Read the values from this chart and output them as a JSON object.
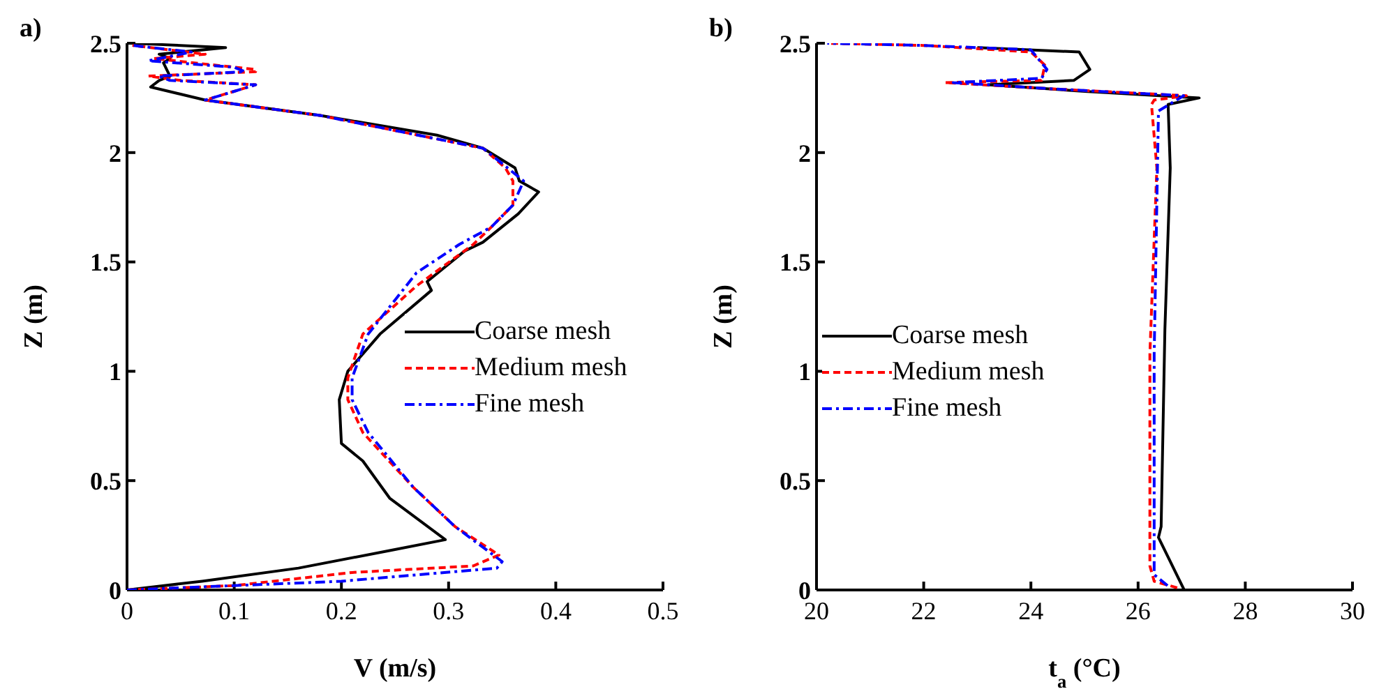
{
  "chart_data": [
    {
      "type": "line",
      "title": "a)",
      "xlabel": "V (m/s)",
      "ylabel": "Z (m)",
      "xlim": [
        0,
        0.5
      ],
      "xticks": [
        0,
        0.1,
        0.2,
        0.3,
        0.4,
        0.5
      ],
      "ylim": [
        0,
        2.5
      ],
      "yticks": [
        0,
        0.5,
        1,
        1.5,
        2,
        2.5
      ],
      "grid": false,
      "legend": "right",
      "marker": "none",
      "series": [
        {
          "name": "Coarse mesh",
          "color": "#000000",
          "line_style": "solid",
          "x": [
            0,
            0.07,
            0.16,
            0.245,
            0.297,
            0.245,
            0.22,
            0.2,
            0.198,
            0.206,
            0.236,
            0.284,
            0.28,
            0.315,
            0.332,
            0.365,
            0.384,
            0.366,
            0.362,
            0.332,
            0.289,
            0.18,
            0.073,
            0.022,
            0.03,
            0.04,
            0.034,
            0.04,
            0.03,
            0.092,
            0.005
          ],
          "values": [
            0,
            0.04,
            0.1,
            0.18,
            0.23,
            0.42,
            0.59,
            0.67,
            0.87,
            1.0,
            1.17,
            1.37,
            1.41,
            1.55,
            1.59,
            1.72,
            1.82,
            1.87,
            1.93,
            2.02,
            2.08,
            2.17,
            2.24,
            2.3,
            2.33,
            2.35,
            2.41,
            2.43,
            2.45,
            2.48,
            2.5
          ]
        },
        {
          "name": "Medium mesh",
          "color": "#ff0000",
          "line_style": "dashed",
          "x": [
            0,
            0.1,
            0.21,
            0.323,
            0.347,
            0.306,
            0.267,
            0.22,
            0.206,
            0.206,
            0.22,
            0.27,
            0.323,
            0.34,
            0.36,
            0.36,
            0.353,
            0.332,
            0.18,
            0.073,
            0.093,
            0.12,
            0.05,
            0.02,
            0.12,
            0.12,
            0.025,
            0.073,
            0.005
          ],
          "values": [
            0,
            0.02,
            0.08,
            0.11,
            0.16,
            0.29,
            0.47,
            0.72,
            0.87,
            0.97,
            1.17,
            1.39,
            1.58,
            1.66,
            1.76,
            1.87,
            1.93,
            2.02,
            2.17,
            2.24,
            2.27,
            2.31,
            2.33,
            2.35,
            2.37,
            2.38,
            2.43,
            2.45,
            2.49
          ]
        },
        {
          "name": "Fine mesh",
          "color": "#0000ff",
          "line_style": "dotted",
          "x": [
            0,
            0.1,
            0.2,
            0.345,
            0.35,
            0.306,
            0.267,
            0.225,
            0.21,
            0.21,
            0.225,
            0.27,
            0.31,
            0.34,
            0.36,
            0.37,
            0.355,
            0.332,
            0.18,
            0.073,
            0.1,
            0.12,
            0.04,
            0.03,
            0.11,
            0.1,
            0.02,
            0.06,
            0.005
          ],
          "values": [
            0,
            0.02,
            0.04,
            0.1,
            0.13,
            0.29,
            0.47,
            0.72,
            0.87,
            0.97,
            1.17,
            1.45,
            1.58,
            1.66,
            1.76,
            1.87,
            1.93,
            2.02,
            2.17,
            2.24,
            2.28,
            2.31,
            2.33,
            2.35,
            2.37,
            2.39,
            2.42,
            2.46,
            2.49
          ]
        }
      ]
    },
    {
      "type": "line",
      "title": "b)",
      "xlabel": "t$_{a}$ (°C)",
      "ylabel": "Z (m)",
      "xlim": [
        20,
        30
      ],
      "xticks": [
        20,
        22,
        24,
        26,
        28,
        30
      ],
      "ylim": [
        0,
        2.5
      ],
      "yticks": [
        0,
        0.5,
        1,
        1.5,
        2,
        2.5
      ],
      "grid": false,
      "legend": "left",
      "marker": "none",
      "series": [
        {
          "name": "Coarse mesh",
          "color": "#000000",
          "line_style": "solid",
          "x": [
            26.86,
            26.38,
            26.43,
            26.5,
            26.6,
            26.56,
            27.14,
            25,
            23.2,
            24.8,
            25.1,
            24.9,
            23
          ],
          "values": [
            0,
            0.24,
            0.29,
            1.19,
            1.93,
            2.22,
            2.25,
            2.28,
            2.31,
            2.33,
            2.38,
            2.46,
            2.48
          ]
        },
        {
          "name": "Medium mesh",
          "color": "#ff0000",
          "line_style": "dashed",
          "x": [
            26.73,
            26.3,
            26.22,
            26.22,
            26.35,
            26.25,
            26.3,
            26.9,
            24.5,
            22.4,
            24.2,
            24.26,
            24.0,
            22,
            20.2
          ],
          "values": [
            0.01,
            0.04,
            0.11,
            1.08,
            1.93,
            2.22,
            2.24,
            2.26,
            2.29,
            2.32,
            2.33,
            2.4,
            2.46,
            2.49,
            2.5
          ]
        },
        {
          "name": "Fine mesh",
          "color": "#0000ff",
          "line_style": "dotted",
          "x": [
            26.55,
            26.3,
            26.3,
            26.38,
            26.85,
            24.5,
            22.55,
            24.2,
            24.3,
            24.0,
            22,
            20.2
          ],
          "values": [
            0.02,
            0.07,
            1.08,
            2.19,
            2.26,
            2.29,
            2.32,
            2.34,
            2.38,
            2.47,
            2.49,
            2.5
          ]
        }
      ]
    }
  ]
}
